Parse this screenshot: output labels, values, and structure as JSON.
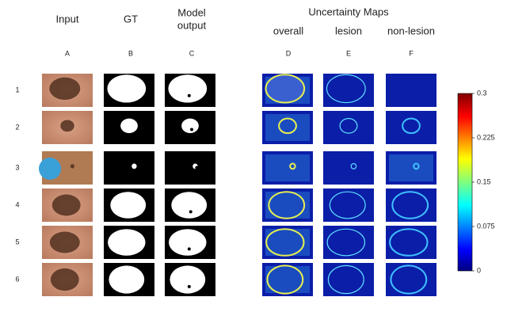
{
  "group_title": "Uncertainty Maps",
  "columns": [
    {
      "title": [
        "Input"
      ],
      "letter": "A"
    },
    {
      "title": [
        "GT"
      ],
      "letter": "B"
    },
    {
      "title": [
        "Model",
        "output"
      ],
      "letter": "C"
    },
    {
      "title": [
        "overall"
      ],
      "letter": "D"
    },
    {
      "title": [
        "lesion"
      ],
      "letter": "E"
    },
    {
      "title": [
        "non-lesion"
      ],
      "letter": "F"
    }
  ],
  "rows": [
    "1",
    "2",
    "3",
    "4",
    "5",
    "6"
  ],
  "colorbar": {
    "limits": [
      0,
      0.3
    ],
    "ticks": [
      0,
      0.075,
      0.15,
      0.225,
      0.3
    ]
  }
}
